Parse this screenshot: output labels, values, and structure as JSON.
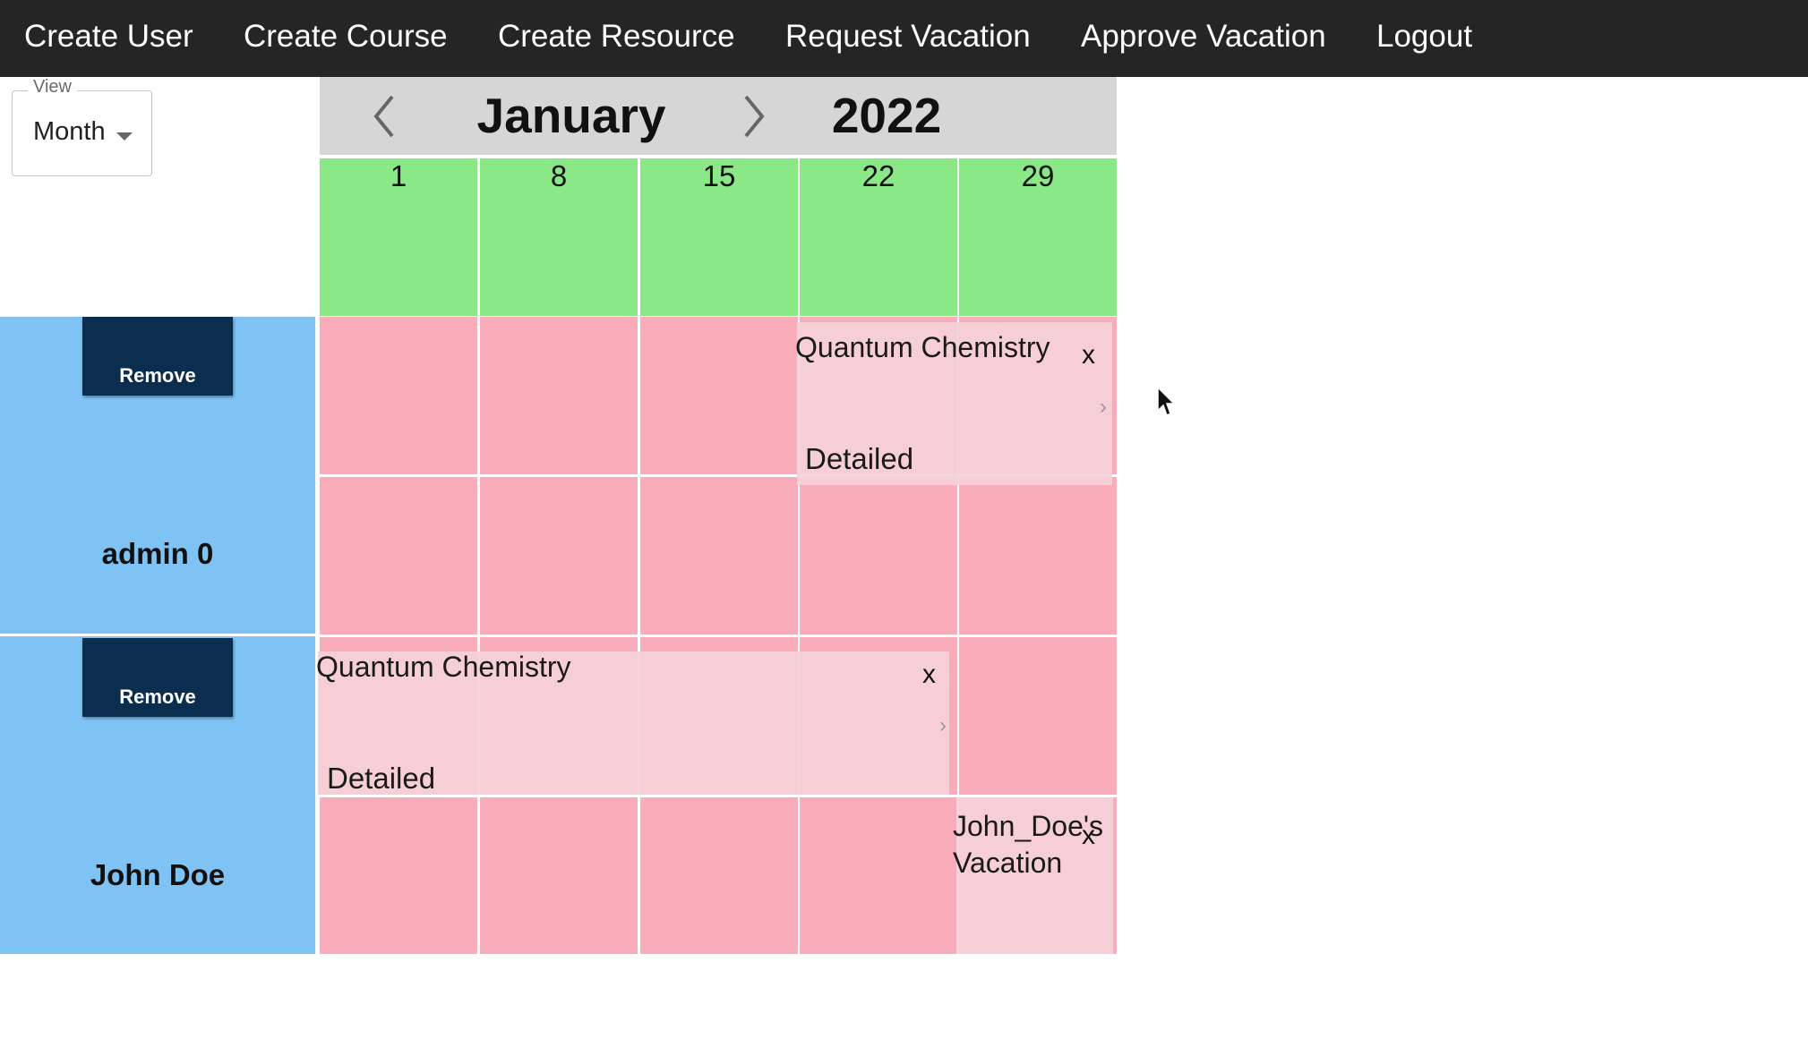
{
  "nav": {
    "items": [
      {
        "label": "Create User"
      },
      {
        "label": "Create Course"
      },
      {
        "label": "Create Resource"
      },
      {
        "label": "Request Vacation"
      },
      {
        "label": "Approve Vacation"
      },
      {
        "label": "Logout"
      }
    ]
  },
  "view_select": {
    "legend": "View",
    "value": "Month"
  },
  "calendar": {
    "month": "January",
    "year": "2022",
    "weeks": [
      "1",
      "8",
      "15",
      "22",
      "29"
    ]
  },
  "users": [
    {
      "remove_label": "Remove",
      "name": "admin 0",
      "event": {
        "title": "Quantum Chemistry",
        "close": "x",
        "detail": "Detailed"
      }
    },
    {
      "remove_label": "Remove",
      "name": "John Doe",
      "event": {
        "title": "Quantum Chemistry",
        "close": "x",
        "detail": "Detailed"
      },
      "vacation": {
        "title_line1": "John_Doe's",
        "title_line2": "Vacation",
        "close": "x"
      }
    }
  ],
  "colors": {
    "nav_bg": "#252525",
    "week_header": "#8ae986",
    "cell": "#f9adbb",
    "user_panel": "#7fc3f4",
    "remove_button": "#0c2e4e",
    "event_bg": "#f4d0d8"
  }
}
